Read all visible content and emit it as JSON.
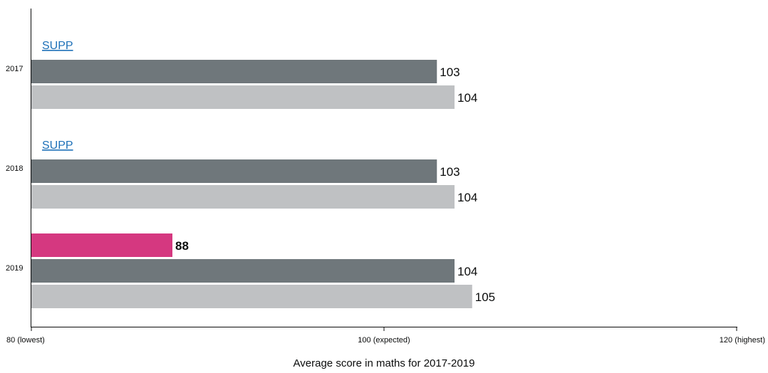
{
  "chart_data": {
    "type": "bar",
    "orientation": "horizontal",
    "xlabel": "Average score in maths for 2017-2019",
    "xlim": [
      80,
      120
    ],
    "x_ticks": [
      {
        "value": 80,
        "label": "80 (lowest)"
      },
      {
        "value": 100,
        "label": "100 (expected)"
      },
      {
        "value": 120,
        "label": "120 (highest)"
      }
    ],
    "categories": [
      "2017",
      "2018",
      "2019"
    ],
    "suppressed_label": "SUPP",
    "series": [
      {
        "color": "#d53880",
        "values": [
          null,
          null,
          88
        ],
        "label_bold": true
      },
      {
        "color": "#6f777b",
        "values": [
          103,
          103,
          104
        ]
      },
      {
        "color": "#bfc1c3",
        "values": [
          104,
          104,
          105
        ]
      }
    ],
    "grid": false,
    "legend": "none"
  }
}
